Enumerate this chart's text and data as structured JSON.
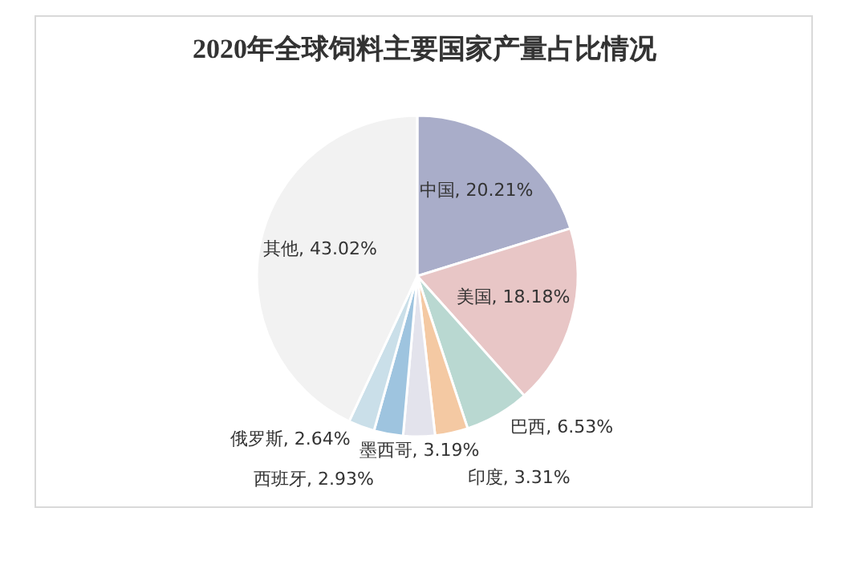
{
  "chart_data": {
    "type": "pie",
    "title": "2020年全球饲料主要国家产量占比情况",
    "categories": [
      "中国",
      "美国",
      "巴西",
      "印度",
      "墨西哥",
      "西班牙",
      "俄罗斯",
      "其他"
    ],
    "values": [
      20.21,
      18.18,
      6.53,
      3.31,
      3.19,
      2.93,
      2.64,
      43.02
    ],
    "value_labels": [
      "20.21%",
      "18.18%",
      "6.53%",
      "3.31%",
      "3.19%",
      "2.93%",
      "2.64%",
      "43.02%"
    ],
    "colors": [
      "#a9adc9",
      "#e8c6c6",
      "#b9d8d1",
      "#f4c9a3",
      "#e3e3ec",
      "#9ec4df",
      "#cadfe9",
      "#f2f2f2"
    ]
  }
}
